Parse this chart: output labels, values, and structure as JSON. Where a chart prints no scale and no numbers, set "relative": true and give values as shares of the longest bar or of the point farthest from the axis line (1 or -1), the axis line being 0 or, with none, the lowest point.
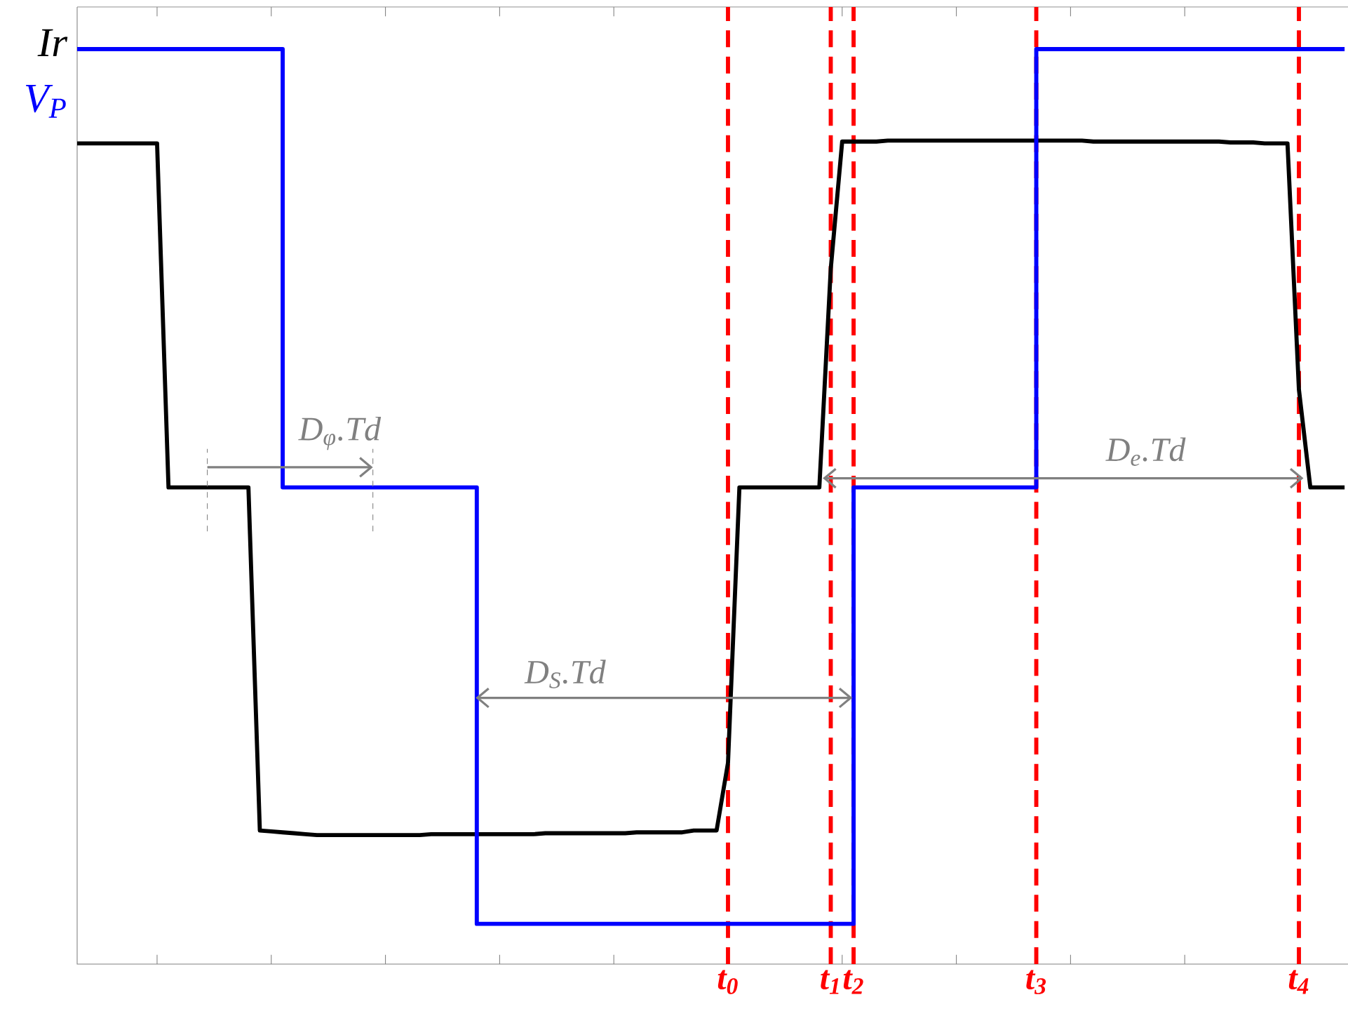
{
  "chart_data": {
    "type": "line",
    "relative": true,
    "grid": false,
    "marker": "none",
    "line_style": "solid",
    "categories": [
      null,
      null,
      null,
      null,
      null,
      null,
      null,
      null,
      null,
      null,
      null,
      null,
      null,
      null,
      null,
      null,
      null,
      null,
      null,
      null,
      null,
      null,
      null,
      null,
      null,
      null,
      null,
      null,
      null,
      null,
      null,
      null,
      null,
      null,
      null,
      null,
      null,
      null,
      null,
      null,
      null,
      null,
      null,
      null,
      null,
      null,
      null,
      null,
      null,
      null,
      null,
      null,
      null,
      null,
      null,
      null,
      null,
      "t$_{0}$",
      null,
      null,
      null,
      null,
      null,
      null,
      null,
      null,
      "t$_{1}$",
      null,
      "t$_{2}$",
      null,
      null,
      null,
      null,
      null,
      null,
      null,
      null,
      null,
      null,
      null,
      null,
      null,
      null,
      null,
      "t$_{3}$",
      null,
      null,
      null,
      null,
      null,
      null,
      null,
      null,
      null,
      null,
      null,
      null,
      null,
      null,
      null,
      null,
      null,
      null,
      null,
      null,
      null,
      null,
      "t$_{4}$",
      null,
      null,
      null,
      null
    ],
    "series": [
      {
        "name": "Ir",
        "color": "#000000",
        "values": [
          0.897,
          0.897,
          0.897,
          0.897,
          0.897,
          0.897,
          0.897,
          0.897,
          0.521,
          0.521,
          0.521,
          0.521,
          0.521,
          0.521,
          0.521,
          0.521,
          0.146,
          0.145,
          0.144,
          0.143,
          0.142,
          0.141,
          0.141,
          0.141,
          0.141,
          0.141,
          0.141,
          0.141,
          0.141,
          0.141,
          0.141,
          0.142,
          0.142,
          0.142,
          0.142,
          0.142,
          0.142,
          0.142,
          0.142,
          0.142,
          0.142,
          0.143,
          0.143,
          0.143,
          0.143,
          0.143,
          0.143,
          0.143,
          0.143,
          0.144,
          0.144,
          0.144,
          0.144,
          0.144,
          0.146,
          0.146,
          0.146,
          0.22,
          0.521,
          0.521,
          0.521,
          0.521,
          0.521,
          0.521,
          0.521,
          0.521,
          0.76,
          0.899,
          0.899,
          0.899,
          0.899,
          0.9,
          0.9,
          0.9,
          0.9,
          0.9,
          0.9,
          0.9,
          0.9,
          0.9,
          0.9,
          0.9,
          0.9,
          0.9,
          0.9,
          0.9,
          0.9,
          0.9,
          0.9,
          0.899,
          0.899,
          0.899,
          0.899,
          0.899,
          0.899,
          0.899,
          0.899,
          0.899,
          0.899,
          0.899,
          0.899,
          0.898,
          0.898,
          0.898,
          0.897,
          0.897,
          0.897,
          0.628,
          0.521,
          0.521,
          0.521,
          0.521
        ]
      },
      {
        "name": "V$_{P}$",
        "type": "step",
        "color": "#0000ff",
        "values": [
          1.0,
          1.0,
          1.0,
          1.0,
          1.0,
          1.0,
          1.0,
          1.0,
          1.0,
          1.0,
          1.0,
          1.0,
          1.0,
          1.0,
          1.0,
          1.0,
          1.0,
          1.0,
          0.521,
          0.521,
          0.521,
          0.521,
          0.521,
          0.521,
          0.521,
          0.521,
          0.521,
          0.521,
          0.521,
          0.521,
          0.521,
          0.521,
          0.521,
          0.521,
          0.521,
          0.044,
          0.044,
          0.044,
          0.044,
          0.044,
          0.044,
          0.044,
          0.044,
          0.044,
          0.044,
          0.044,
          0.044,
          0.044,
          0.044,
          0.044,
          0.044,
          0.044,
          0.044,
          0.044,
          0.044,
          0.044,
          0.044,
          0.044,
          0.044,
          0.044,
          0.044,
          0.044,
          0.044,
          0.044,
          0.044,
          0.044,
          0.044,
          0.044,
          0.521,
          0.521,
          0.521,
          0.521,
          0.521,
          0.521,
          0.521,
          0.521,
          0.521,
          0.521,
          0.521,
          0.521,
          0.521,
          0.521,
          0.521,
          0.521,
          1.0,
          1.0,
          1.0,
          1.0,
          1.0,
          1.0,
          1.0,
          1.0,
          1.0,
          1.0,
          1.0,
          1.0,
          1.0,
          1.0,
          1.0,
          1.0,
          1.0,
          1.0,
          1.0,
          1.0,
          1.0,
          1.0,
          1.0,
          1.0,
          1.0,
          1.0,
          1.0,
          1.0
        ]
      }
    ],
    "ref_lines": [
      {
        "axis": "x",
        "value": "t$_{0}$",
        "color": "#ff0000",
        "line_style": "dashed"
      },
      {
        "axis": "x",
        "value": "t$_{1}$",
        "color": "#ff0000",
        "line_style": "dashed"
      },
      {
        "axis": "x",
        "value": "t$_{2}$",
        "color": "#ff0000",
        "line_style": "dashed"
      },
      {
        "axis": "x",
        "value": "t$_{3}$",
        "color": "#ff0000",
        "line_style": "dashed"
      },
      {
        "axis": "x",
        "value": "t$_{4}$",
        "color": "#ff0000",
        "line_style": "dashed"
      }
    ],
    "annotations": [
      "D$_{φ}$.Td",
      "D$_{S}$.Td",
      "D$_{e}$.Td"
    ]
  }
}
